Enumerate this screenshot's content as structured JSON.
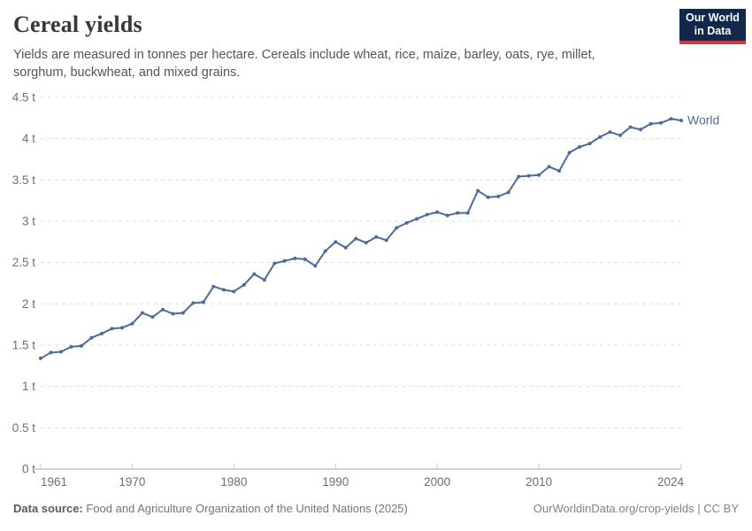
{
  "header": {
    "title": "Cereal yields",
    "subtitle": "Yields are measured in tonnes per hectare. Cereals include wheat, rice, maize, barley, oats, rye, millet, sorghum, buckwheat, and mixed grains.",
    "logo": {
      "line1": "Our World",
      "line2": "in Data"
    }
  },
  "chart_data": {
    "type": "line",
    "title": "Cereal yields",
    "unit": "t",
    "xlabel": "",
    "ylabel": "tonnes per hectare",
    "ylim": [
      0,
      4.5
    ],
    "y_tick_step": 0.5,
    "x_ticks": [
      1961,
      1970,
      1980,
      1990,
      2000,
      2010,
      2024
    ],
    "grid": "horizontal-dashed",
    "legend_position": "end-of-line-label",
    "x": [
      1961,
      1962,
      1963,
      1964,
      1965,
      1966,
      1967,
      1968,
      1969,
      1970,
      1971,
      1972,
      1973,
      1974,
      1975,
      1976,
      1977,
      1978,
      1979,
      1980,
      1981,
      1982,
      1983,
      1984,
      1985,
      1986,
      1987,
      1988,
      1989,
      1990,
      1991,
      1992,
      1993,
      1994,
      1995,
      1996,
      1997,
      1998,
      1999,
      2000,
      2001,
      2002,
      2003,
      2004,
      2005,
      2006,
      2007,
      2008,
      2009,
      2010,
      2011,
      2012,
      2013,
      2014,
      2015,
      2016,
      2017,
      2018,
      2019,
      2020,
      2021,
      2022,
      2023,
      2024
    ],
    "series": [
      {
        "name": "World",
        "color": "#4C6A9C",
        "values": [
          1.34,
          1.41,
          1.42,
          1.48,
          1.49,
          1.59,
          1.64,
          1.7,
          1.71,
          1.76,
          1.89,
          1.84,
          1.93,
          1.88,
          1.89,
          2.01,
          2.02,
          2.21,
          2.17,
          2.15,
          2.23,
          2.36,
          2.29,
          2.49,
          2.52,
          2.55,
          2.54,
          2.46,
          2.64,
          2.75,
          2.68,
          2.79,
          2.74,
          2.81,
          2.77,
          2.92,
          2.98,
          3.03,
          3.08,
          3.11,
          3.07,
          3.1,
          3.1,
          3.37,
          3.29,
          3.3,
          3.35,
          3.54,
          3.55,
          3.56,
          3.66,
          3.61,
          3.83,
          3.9,
          3.94,
          4.02,
          4.08,
          4.04,
          4.14,
          4.11,
          4.18,
          4.19,
          4.24,
          4.22
        ]
      }
    ]
  },
  "footer": {
    "source_label": "Data source:",
    "source_text": "Food and Agriculture Organization of the United Nations (2025)",
    "credit": "OurWorldinData.org/crop-yields | CC BY"
  },
  "colors": {
    "accent_line": "#4C6A9C",
    "grid": "#dddddd",
    "axis": "#a5a5a5",
    "tick": "#c8c8c8",
    "tick_label": "#6e6e6e",
    "logo_bg": "#12284b",
    "logo_bar": "#cc3b3f"
  }
}
